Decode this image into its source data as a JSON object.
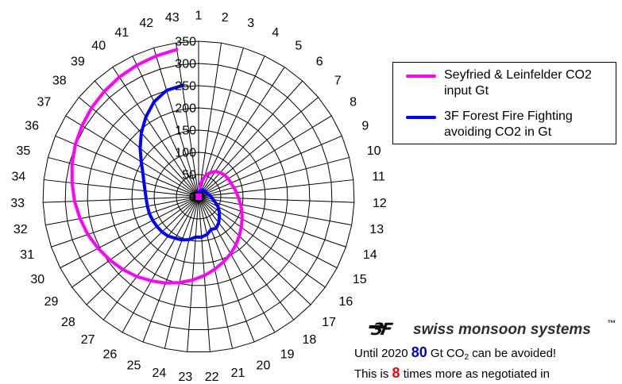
{
  "chart_data": {
    "type": "radar",
    "categories": [
      "1",
      "2",
      "3",
      "4",
      "5",
      "6",
      "7",
      "8",
      "9",
      "10",
      "11",
      "12",
      "13",
      "14",
      "15",
      "16",
      "17",
      "18",
      "19",
      "20",
      "21",
      "22",
      "23",
      "24",
      "25",
      "26",
      "27",
      "28",
      "29",
      "30",
      "31",
      "32",
      "33",
      "34",
      "35",
      "36",
      "37",
      "38",
      "39",
      "40",
      "41",
      "42",
      "43"
    ],
    "radial_ticks": [
      "0",
      "50",
      "100",
      "150",
      "200",
      "250",
      "300",
      "350"
    ],
    "rlim": [
      0,
      350
    ],
    "grid": true,
    "legend_position": "right",
    "series": [
      {
        "name": "Seyfried & Leinfelder CO2 input Gt",
        "color": "#ff00ff",
        "values": [
          2,
          30,
          48,
          60,
          68,
          73,
          76,
          78,
          79,
          82,
          86,
          90,
          96,
          103,
          110,
          118,
          127,
          137,
          147,
          157,
          167,
          178,
          188,
          198,
          208,
          217,
          227,
          236,
          245,
          254,
          263,
          271,
          279,
          286,
          294,
          301,
          307,
          313,
          318,
          323,
          327,
          331,
          335
        ]
      },
      {
        "name": "3F Forest Fire Fighting avoiding CO2 in Gt",
        "color": "#0000ff",
        "values": [
          1,
          10,
          14,
          17,
          18,
          18,
          19,
          20,
          20,
          22,
          26,
          29,
          33,
          40,
          49,
          57,
          65,
          74,
          81,
          79,
          87,
          91,
          91,
          99,
          104,
          107,
          112,
          114,
          115,
          116,
          117,
          117,
          118,
          121,
          127,
          136,
          151,
          171,
          193,
          215,
          236,
          250,
          253
        ]
      }
    ]
  },
  "branding": {
    "logo": "3F",
    "name": "swiss monsoon systems",
    "trademark": "™"
  },
  "notes": {
    "line1_a": "Until 2020",
    "line1_value": "80",
    "line1_b": "Gt CO",
    "line1_sub": "2",
    "line1_c": "can be avoided!",
    "line2_a": "This is",
    "line2_value": "8",
    "line2_b": "times more as negotiated in"
  },
  "colors": {
    "grid": "#000000",
    "highlight_blue": "#0000cc",
    "highlight_red": "#ff0000"
  }
}
